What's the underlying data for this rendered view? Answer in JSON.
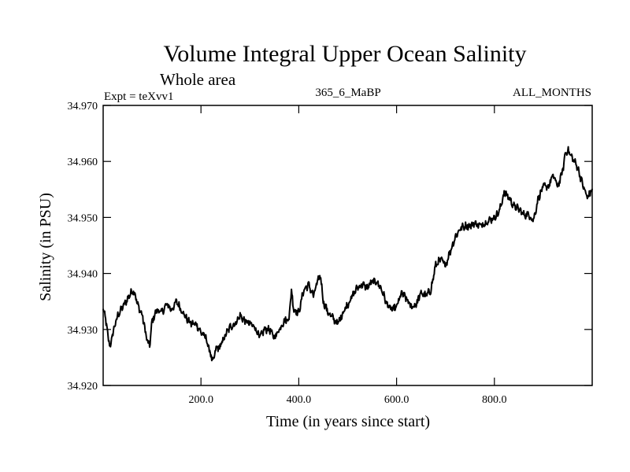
{
  "chart_data": {
    "type": "line",
    "title": "Volume Integral Upper Ocean Salinity",
    "subtitle": "Whole area",
    "expt_label": "Expt = teXvv1",
    "center_label": "365_6_MaBP",
    "right_label": "ALL_MONTHS",
    "xlabel": "Time (in years since start)",
    "ylabel": "Salinity (in PSU)",
    "xlim": [
      0,
      1000
    ],
    "ylim": [
      34.92,
      34.97
    ],
    "x_ticks": [
      {
        "value": 200,
        "label": "200.0"
      },
      {
        "value": 400,
        "label": "400.0"
      },
      {
        "value": 600,
        "label": "600.0"
      },
      {
        "value": 800,
        "label": "800.0"
      }
    ],
    "y_ticks": [
      {
        "value": 34.92,
        "label": "34.920"
      },
      {
        "value": 34.93,
        "label": "34.930"
      },
      {
        "value": 34.94,
        "label": "34.940"
      },
      {
        "value": 34.95,
        "label": "34.950"
      },
      {
        "value": 34.96,
        "label": "34.960"
      },
      {
        "value": 34.97,
        "label": "34.970"
      }
    ],
    "series": [
      {
        "name": "salinity",
        "x": [
          0,
          5,
          10,
          15,
          20,
          25,
          30,
          40,
          50,
          60,
          65,
          70,
          80,
          90,
          95,
          100,
          110,
          120,
          130,
          140,
          150,
          160,
          170,
          180,
          190,
          200,
          210,
          220,
          225,
          230,
          240,
          250,
          260,
          270,
          280,
          290,
          300,
          310,
          320,
          330,
          340,
          350,
          360,
          370,
          380,
          385,
          390,
          400,
          410,
          420,
          430,
          440,
          445,
          450,
          460,
          470,
          480,
          490,
          500,
          510,
          520,
          530,
          540,
          550,
          560,
          570,
          580,
          590,
          600,
          610,
          620,
          630,
          640,
          650,
          660,
          670,
          680,
          690,
          700,
          710,
          720,
          730,
          740,
          750,
          760,
          770,
          780,
          790,
          800,
          810,
          820,
          830,
          840,
          850,
          860,
          870,
          880,
          890,
          900,
          910,
          920,
          930,
          940,
          945,
          950,
          960,
          970,
          980,
          990,
          1000
        ],
        "y": [
          34.9335,
          34.932,
          34.9285,
          34.927,
          34.9295,
          34.931,
          34.9325,
          34.934,
          34.9355,
          34.937,
          34.9365,
          34.9345,
          34.9325,
          34.928,
          34.927,
          34.9315,
          34.9335,
          34.933,
          34.9345,
          34.9335,
          34.935,
          34.9335,
          34.932,
          34.931,
          34.931,
          34.9295,
          34.9285,
          34.9255,
          34.924,
          34.9265,
          34.927,
          34.929,
          34.9305,
          34.931,
          34.9325,
          34.9315,
          34.931,
          34.9305,
          34.9285,
          34.93,
          34.93,
          34.9285,
          34.93,
          34.9315,
          34.932,
          34.937,
          34.9335,
          34.933,
          34.937,
          34.938,
          34.936,
          34.939,
          34.9395,
          34.935,
          34.933,
          34.932,
          34.931,
          34.933,
          34.9345,
          34.936,
          34.9375,
          34.938,
          34.9375,
          34.9385,
          34.9385,
          34.937,
          34.9345,
          34.9335,
          34.934,
          34.9365,
          34.9355,
          34.934,
          34.9345,
          34.9365,
          34.936,
          34.937,
          34.9415,
          34.9425,
          34.9415,
          34.944,
          34.9465,
          34.948,
          34.9485,
          34.9485,
          34.949,
          34.9485,
          34.949,
          34.9495,
          34.95,
          34.951,
          34.9545,
          34.9535,
          34.952,
          34.9515,
          34.9505,
          34.9505,
          34.9495,
          34.9535,
          34.9555,
          34.9555,
          34.9575,
          34.9555,
          34.9585,
          34.9615,
          34.962,
          34.9605,
          34.959,
          34.956,
          34.9535,
          34.955
        ]
      }
    ]
  }
}
